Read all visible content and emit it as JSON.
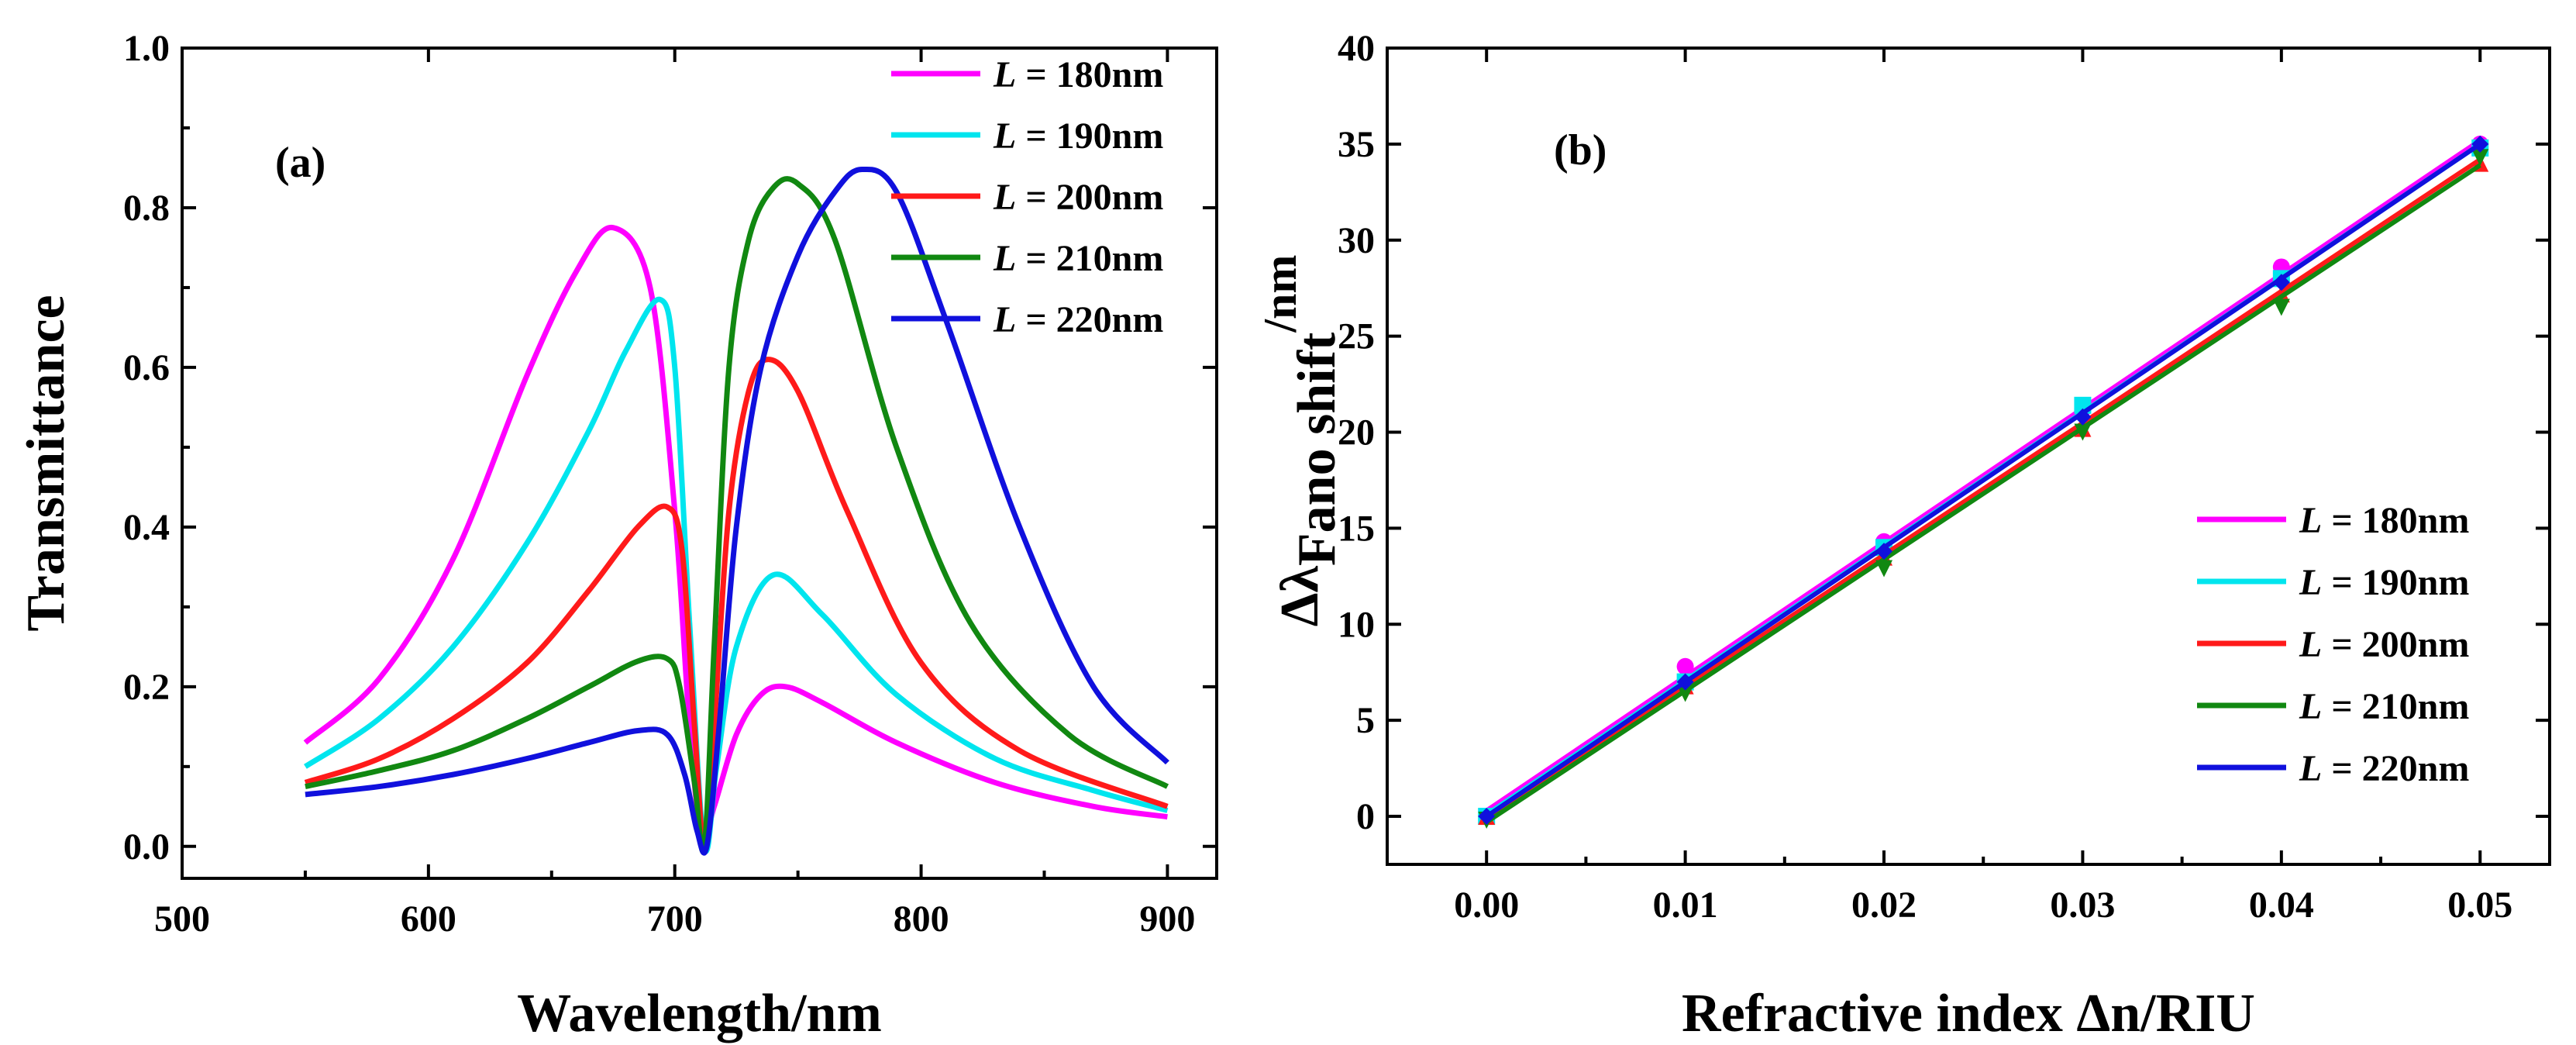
{
  "chart_data": [
    {
      "type": "line",
      "panel_label": "(a)",
      "xlabel": "Wavelength/nm",
      "ylabel": "Transmittance",
      "xlim": [
        500,
        920
      ],
      "ylim": [
        -0.04,
        1.0
      ],
      "xticks": [
        500,
        600,
        700,
        800,
        900
      ],
      "yticks": [
        0.0,
        0.2,
        0.4,
        0.6,
        0.8,
        1.0
      ],
      "xtick_labels": [
        "500",
        "600",
        "700",
        "800",
        "900"
      ],
      "ytick_labels": [
        "0.0",
        "0.2",
        "0.4",
        "0.6",
        "0.8",
        "1.0"
      ],
      "legend_position": "top-right",
      "series": [
        {
          "name_prefix": "L",
          "name_suffix": " = 180nm",
          "color": "#ff00ff",
          "x": [
            550,
            580,
            610,
            640,
            660,
            675,
            690,
            700,
            706,
            711,
            716,
            725,
            735,
            745,
            760,
            790,
            830,
            870,
            900
          ],
          "y": [
            0.13,
            0.21,
            0.36,
            0.59,
            0.72,
            0.775,
            0.7,
            0.42,
            0.15,
            0.01,
            0.05,
            0.14,
            0.19,
            0.2,
            0.18,
            0.13,
            0.08,
            0.05,
            0.037
          ]
        },
        {
          "name_prefix": "L",
          "name_suffix": " = 190nm",
          "color": "#00e5ee",
          "x": [
            550,
            580,
            610,
            640,
            665,
            680,
            694,
            700,
            706,
            712,
            717,
            725,
            740,
            760,
            790,
            830,
            870,
            900
          ],
          "y": [
            0.1,
            0.16,
            0.25,
            0.38,
            0.52,
            0.62,
            0.685,
            0.6,
            0.28,
            0.0,
            0.1,
            0.25,
            0.34,
            0.29,
            0.19,
            0.11,
            0.07,
            0.045
          ]
        },
        {
          "name_prefix": "L",
          "name_suffix": " = 200nm",
          "color": "#ff1a1a",
          "x": [
            550,
            580,
            610,
            640,
            665,
            685,
            697,
            703,
            708,
            712,
            716,
            722,
            730,
            738,
            750,
            770,
            800,
            840,
            900
          ],
          "y": [
            0.08,
            0.11,
            0.16,
            0.23,
            0.32,
            0.4,
            0.425,
            0.37,
            0.15,
            0.0,
            0.15,
            0.42,
            0.57,
            0.61,
            0.57,
            0.42,
            0.23,
            0.12,
            0.05
          ]
        },
        {
          "name_prefix": "L",
          "name_suffix": " = 210nm",
          "color": "#118811",
          "x": [
            550,
            580,
            610,
            640,
            665,
            685,
            697,
            702,
            708,
            712,
            716,
            722,
            730,
            740,
            750,
            765,
            790,
            820,
            860,
            900
          ],
          "y": [
            0.075,
            0.095,
            0.12,
            0.16,
            0.2,
            0.232,
            0.235,
            0.2,
            0.08,
            0.0,
            0.25,
            0.6,
            0.76,
            0.825,
            0.83,
            0.76,
            0.5,
            0.28,
            0.14,
            0.075
          ]
        },
        {
          "name_prefix": "L",
          "name_suffix": " = 220nm",
          "color": "#1010dd",
          "x": [
            550,
            580,
            610,
            640,
            665,
            685,
            697,
            704,
            709,
            713,
            718,
            725,
            735,
            750,
            765,
            776,
            790,
            810,
            840,
            870,
            900
          ],
          "y": [
            0.065,
            0.075,
            0.09,
            0.11,
            0.13,
            0.145,
            0.14,
            0.09,
            0.02,
            0.0,
            0.15,
            0.4,
            0.6,
            0.74,
            0.82,
            0.848,
            0.82,
            0.66,
            0.4,
            0.2,
            0.105
          ]
        }
      ]
    },
    {
      "type": "scatter",
      "panel_label": "(b)",
      "xlabel": "Refractive index Δn/RIU",
      "ylabel_main": "Δλ",
      "ylabel_sub": "Fano shift",
      "ylabel_unit": "/nm",
      "xlim": [
        -0.005,
        0.0535
      ],
      "ylim": [
        -2.5,
        40
      ],
      "xticks": [
        0.0,
        0.01,
        0.02,
        0.03,
        0.04,
        0.05
      ],
      "yticks": [
        0,
        5,
        10,
        15,
        20,
        25,
        30,
        35,
        40
      ],
      "xtick_labels": [
        "0.00",
        "0.01",
        "0.02",
        "0.03",
        "0.04",
        "0.05"
      ],
      "ytick_labels": [
        "0",
        "5",
        "10",
        "15",
        "20",
        "25",
        "30",
        "35",
        "40"
      ],
      "legend_position": "bottom-right",
      "series": [
        {
          "name_prefix": "L",
          "name_suffix": " = 180nm",
          "color": "#ff00ff",
          "marker": "circle",
          "x": [
            0.0,
            0.01,
            0.02,
            0.03,
            0.04,
            0.05
          ],
          "y": [
            0,
            7.8,
            14.3,
            21.2,
            28.6,
            35.0
          ],
          "fit": [
            0.3,
            35.2
          ]
        },
        {
          "name_prefix": "L",
          "name_suffix": " = 190nm",
          "color": "#00e5ee",
          "marker": "square",
          "x": [
            0.0,
            0.01,
            0.02,
            0.03,
            0.04,
            0.05
          ],
          "y": [
            0,
            7.0,
            14.0,
            21.4,
            28.0,
            34.8
          ],
          "fit": [
            0.1,
            35.0
          ]
        },
        {
          "name_prefix": "L",
          "name_suffix": " = 200nm",
          "color": "#ff1a1a",
          "marker": "triangle",
          "x": [
            0.0,
            0.01,
            0.02,
            0.03,
            0.04,
            0.05
          ],
          "y": [
            0,
            6.8,
            13.5,
            20.2,
            27.2,
            34.0
          ],
          "fit": [
            -0.1,
            34.2
          ]
        },
        {
          "name_prefix": "L",
          "name_suffix": " = 210nm",
          "color": "#118811",
          "marker": "triangle-down",
          "x": [
            0.0,
            0.01,
            0.02,
            0.03,
            0.04,
            0.05
          ],
          "y": [
            -0.2,
            6.4,
            12.9,
            20.0,
            26.5,
            34.3
          ],
          "fit": [
            -0.3,
            33.9
          ]
        },
        {
          "name_prefix": "L",
          "name_suffix": " = 220nm",
          "color": "#1010dd",
          "marker": "diamond",
          "x": [
            0.0,
            0.01,
            0.02,
            0.03,
            0.04,
            0.05
          ],
          "y": [
            0,
            7.0,
            13.8,
            20.8,
            27.8,
            35.0
          ],
          "fit": [
            0.0,
            35.0
          ]
        }
      ]
    }
  ]
}
